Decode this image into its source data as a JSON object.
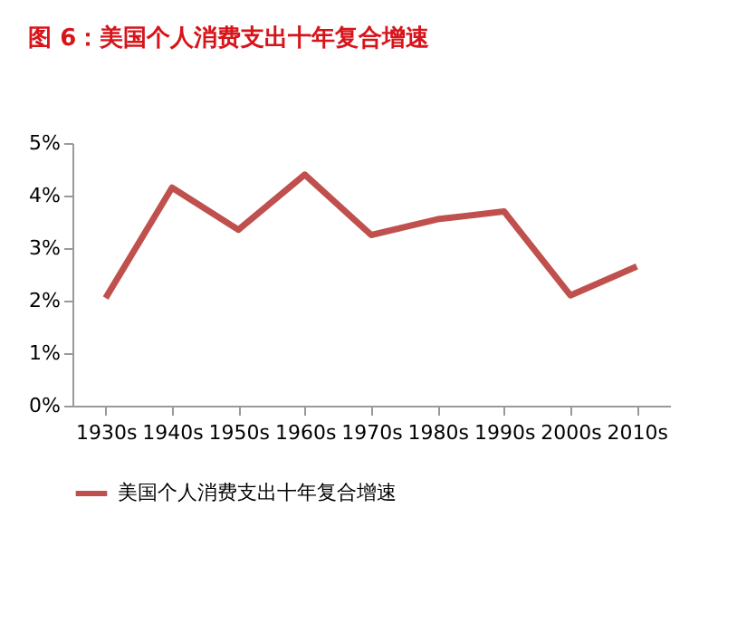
{
  "chart_data": {
    "type": "line",
    "title": "图 6：美国个人消费支出十年复合增速",
    "categories": [
      "1930s",
      "1940s",
      "1950s",
      "1960s",
      "1970s",
      "1980s",
      "1990s",
      "2000s",
      "2010s"
    ],
    "series": [
      {
        "name": "美国个人消费支出十年复合增速",
        "color": "#c0504d",
        "values": [
          2.05,
          4.15,
          3.35,
          4.4,
          3.25,
          3.55,
          3.7,
          2.1,
          2.65
        ]
      }
    ],
    "ylim": [
      0,
      5
    ],
    "yticks": [
      {
        "value": 0,
        "label": "0%"
      },
      {
        "value": 1,
        "label": "1%"
      },
      {
        "value": 2,
        "label": "2%"
      },
      {
        "value": 3,
        "label": "3%"
      },
      {
        "value": 4,
        "label": "4%"
      },
      {
        "value": 5,
        "label": "5%"
      }
    ],
    "grid": false,
    "legend": "bottom",
    "marker": "none",
    "line_style": "solid"
  }
}
